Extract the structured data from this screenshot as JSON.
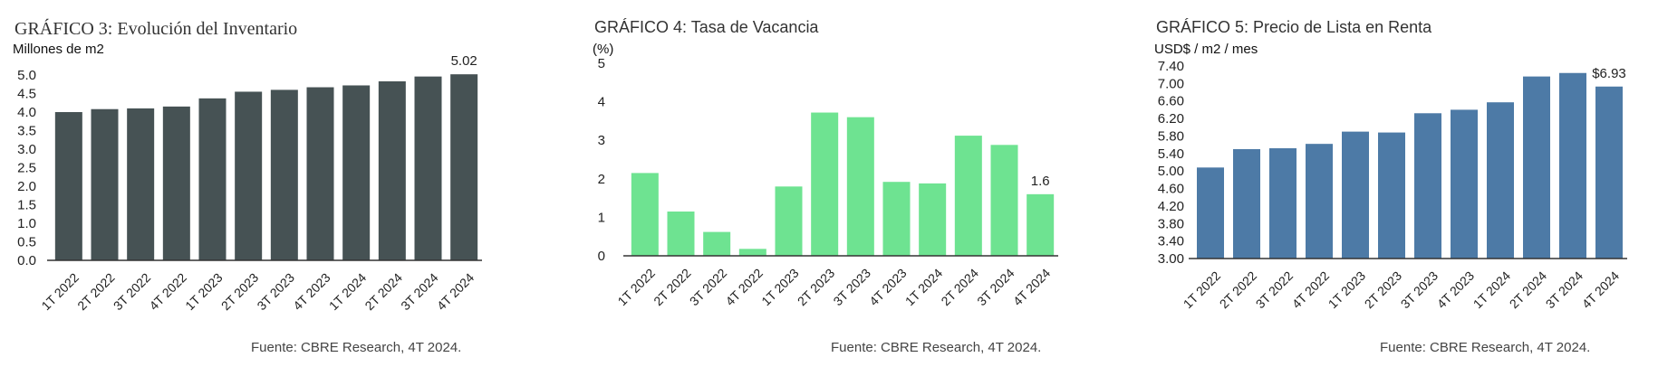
{
  "charts": [
    {
      "id": "inventario",
      "title": "GRÁFICO 3: Evolución del Inventario",
      "unit": "Millones de m2",
      "source": "Fuente: CBRE Research, 4T 2024."
    },
    {
      "id": "vacancia",
      "title": "GRÁFICO 4: Tasa de Vacancia",
      "unit": "(%)",
      "source": "Fuente: CBRE Research, 4T 2024."
    },
    {
      "id": "precio",
      "title": "GRÁFICO 5: Precio de Lista en Renta",
      "unit": "USD$ / m2 / mes",
      "source": "Fuente: CBRE Research, 4T 2024."
    }
  ],
  "chart_data": [
    {
      "type": "bar",
      "title": "GRÁFICO 3: Evolución del Inventario",
      "ylabel": "Millones de m2",
      "categories": [
        "1T 2022",
        "2T 2022",
        "3T 2022",
        "4T 2022",
        "1T 2023",
        "2T 2023",
        "3T 2023",
        "4T 2023",
        "1T 2024",
        "2T 2024",
        "3T 2024",
        "4T 2024"
      ],
      "values": [
        4.0,
        4.08,
        4.1,
        4.15,
        4.37,
        4.55,
        4.6,
        4.67,
        4.72,
        4.83,
        4.96,
        5.02
      ],
      "ylim": [
        0,
        5.0
      ],
      "yticks": [
        "0.0",
        "0.5",
        "1.0",
        "1.5",
        "2.0",
        "2.5",
        "3.0",
        "3.5",
        "4.0",
        "4.5",
        "5.0"
      ],
      "data_labels": [
        {
          "index": 11,
          "text": "5.02"
        }
      ],
      "color": "#465254",
      "grid": false
    },
    {
      "type": "bar",
      "title": "GRÁFICO 4: Tasa de Vacancia",
      "ylabel": "(%)",
      "categories": [
        "1T 2022",
        "2T 2022",
        "3T 2022",
        "4T 2022",
        "1T 2023",
        "2T 2023",
        "3T 2023",
        "4T 2023",
        "1T 2024",
        "2T 2024",
        "3T 2024",
        "4T 2024"
      ],
      "values": [
        2.15,
        1.15,
        0.62,
        0.18,
        1.8,
        3.72,
        3.6,
        1.92,
        1.88,
        3.12,
        2.88,
        1.6
      ],
      "ylim": [
        0,
        5
      ],
      "yticks": [
        "0",
        "1",
        "2",
        "3",
        "4",
        "5"
      ],
      "data_labels": [
        {
          "index": 11,
          "text": "1.6"
        }
      ],
      "color": "#6ee391",
      "grid": false
    },
    {
      "type": "bar",
      "title": "GRÁFICO 5: Precio de Lista en Renta",
      "ylabel": "USD$ / m2 / mes",
      "categories": [
        "1T 2022",
        "2T 2022",
        "3T 2022",
        "4T 2022",
        "1T 2023",
        "2T 2023",
        "3T 2023",
        "4T 2023",
        "1T 2024",
        "2T 2024",
        "3T 2024",
        "4T 2024"
      ],
      "values": [
        5.08,
        5.5,
        5.52,
        5.62,
        5.9,
        5.88,
        6.32,
        6.4,
        6.57,
        7.16,
        7.24,
        6.93
      ],
      "ylim": [
        3.0,
        7.4
      ],
      "yticks": [
        "3.00",
        "3.40",
        "3.80",
        "4.20",
        "4.60",
        "5.00",
        "5.40",
        "5.80",
        "6.20",
        "6.60",
        "7.00",
        "7.40"
      ],
      "data_labels": [
        {
          "index": 11,
          "text": "$6.93"
        }
      ],
      "color": "#4d7aa6",
      "grid": false
    }
  ]
}
